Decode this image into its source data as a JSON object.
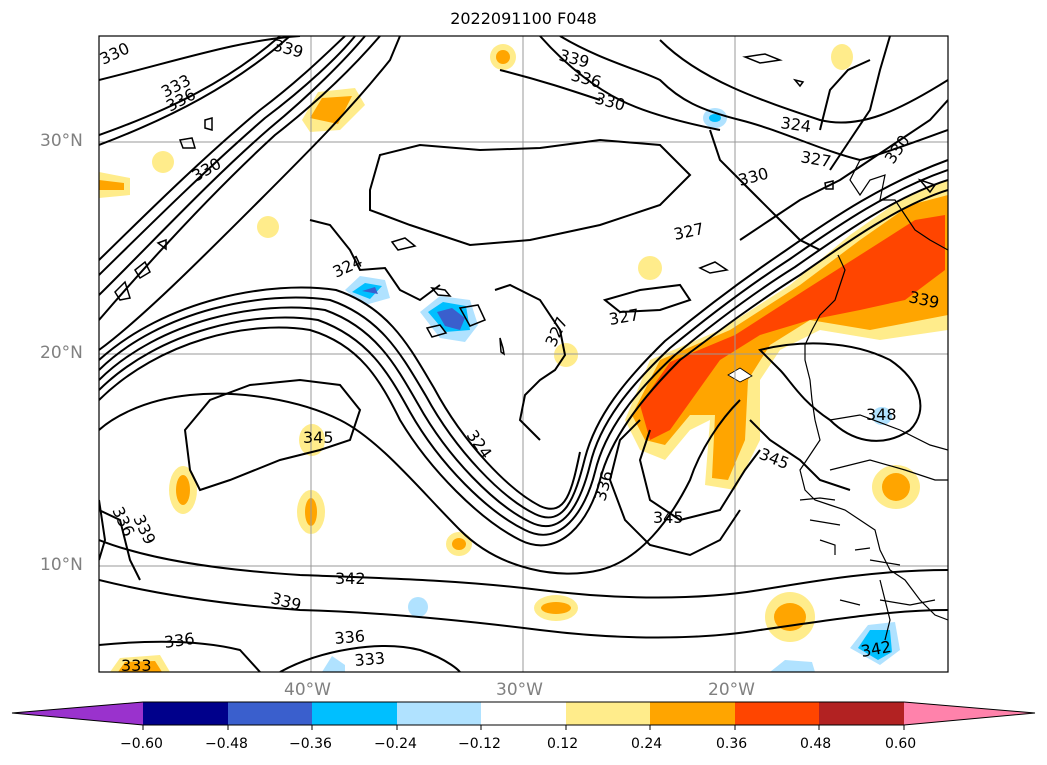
{
  "title": "2022091100 F048",
  "map": {
    "latitude_labels": [
      "30°N",
      "20°N",
      "10°N"
    ],
    "longitude_labels": [
      "40°W",
      "30°W",
      "20°W"
    ],
    "contour_labels": [
      "330",
      "339",
      "333",
      "336",
      "339",
      "336",
      "330",
      "324",
      "327",
      "330",
      "330",
      "327",
      "324",
      "327",
      "327",
      "339",
      "348",
      "345",
      "345",
      "324",
      "336",
      "345",
      "336",
      "339",
      "342",
      "339",
      "336",
      "336",
      "333",
      "342",
      "333",
      "330"
    ]
  },
  "colorbar": {
    "tick_labels": [
      "−0.60",
      "−0.48",
      "−0.36",
      "−0.24",
      "−0.12",
      "0.12",
      "0.24",
      "0.36",
      "0.48",
      "0.60"
    ],
    "colors": {
      "under": "#9a32cd",
      "bins": [
        "#00008b",
        "#3a5fcd",
        "#00bfff",
        "#b0e2ff",
        "#ffffff",
        "#ffec8b",
        "#ffa500",
        "#ff4500",
        "#b22222"
      ],
      "over": "#ff82ab"
    }
  },
  "field_colors": {
    "yellow": "#ffec8b",
    "orange": "#ffa500",
    "red": "#ff4500",
    "lightblue": "#b0e2ff",
    "blue": "#00bfff",
    "royal": "#3a5fcd"
  }
}
